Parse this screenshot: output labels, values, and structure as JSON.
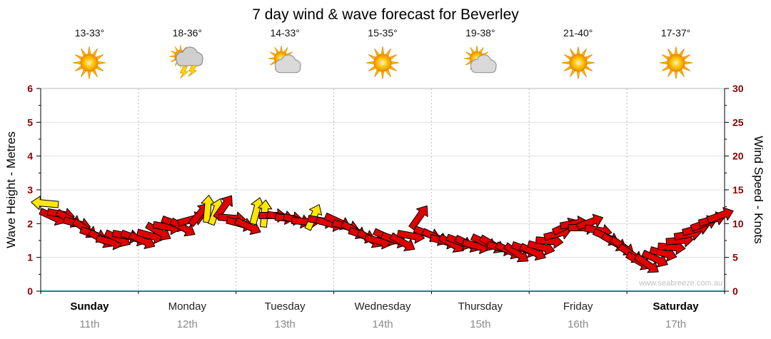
{
  "title": "7 day wind & wave forecast for Beverley",
  "watermark": "www.seabreeze.com.au",
  "axes": {
    "left_label": "Wave Height - Metres",
    "right_label": "Wind Speed - Knots",
    "left_ticks": [
      0,
      1,
      2,
      3,
      4,
      5,
      6
    ],
    "right_ticks": [
      0,
      5,
      10,
      15,
      20,
      25,
      30
    ]
  },
  "days": [
    {
      "name": "Sunday",
      "date": "11th",
      "temp": "13-33°",
      "icon": "sunny",
      "bold": true
    },
    {
      "name": "Monday",
      "date": "12th",
      "temp": "18-36°",
      "icon": "storm",
      "bold": false
    },
    {
      "name": "Tuesday",
      "date": "13th",
      "temp": "14-33°",
      "icon": "partly-cloudy",
      "bold": false
    },
    {
      "name": "Wednesday",
      "date": "14th",
      "temp": "15-35°",
      "icon": "sunny",
      "bold": false
    },
    {
      "name": "Thursday",
      "date": "15th",
      "temp": "19-38°",
      "icon": "partly-cloudy",
      "bold": false
    },
    {
      "name": "Friday",
      "date": "16th",
      "temp": "21-40°",
      "icon": "sunny",
      "bold": false
    },
    {
      "name": "Saturday",
      "date": "17th",
      "temp": "17-37°",
      "icon": "sunny",
      "bold": true
    }
  ],
  "colors": {
    "arrow_red": "#E00000",
    "arrow_yellow": "#FFE800",
    "tick_label": "#8B0000",
    "baseline_teal": "#0F8A8A",
    "grid": "#E0E0E0",
    "day_separator": "#BDBDBD",
    "axis_line": "#000000",
    "top_border": "#BBBBBB"
  },
  "chart_data": {
    "type": "scatter",
    "subtype": "wind-arrow-series",
    "title": "7 day wind & wave forecast for Beverley",
    "ylabel_left": "Wave Height - Metres",
    "ylabel_right": "Wind Speed - Knots",
    "ylim_left_metres": [
      0,
      6
    ],
    "ylim_right_knots": [
      0,
      30
    ],
    "x_categories": [
      "Sunday 11th",
      "Monday 12th",
      "Tuesday 13th",
      "Wednesday 14th",
      "Thursday 15th",
      "Friday 16th",
      "Saturday 17th"
    ],
    "x_range_days": 7,
    "point_interval_hours": 2,
    "point_format": "[wind_knots, arrow_rotation_deg_cw_from_east, color r=red y=yellow]",
    "points": [
      [
        13,
        185,
        "y"
      ],
      [
        11,
        25,
        "r"
      ],
      [
        11.4,
        10,
        "r"
      ],
      [
        10.7,
        30,
        "r"
      ],
      [
        10,
        15,
        "r"
      ],
      [
        9.2,
        35,
        "r"
      ],
      [
        8.4,
        20,
        "r"
      ],
      [
        7.7,
        30,
        "r"
      ],
      [
        7.3,
        15,
        "r"
      ],
      [
        7.8,
        25,
        "r"
      ],
      [
        8.2,
        10,
        "r"
      ],
      [
        7.9,
        20,
        "r"
      ],
      [
        7.5,
        25,
        "r"
      ],
      [
        8.2,
        15,
        "r"
      ],
      [
        8.8,
        30,
        "r"
      ],
      [
        9.5,
        10,
        "r"
      ],
      [
        10,
        20,
        "r"
      ],
      [
        9.4,
        30,
        "r"
      ],
      [
        10.6,
        -15,
        "r"
      ],
      [
        11.4,
        -50,
        "r"
      ],
      [
        12.2,
        -85,
        "y"
      ],
      [
        11.8,
        -70,
        "y"
      ],
      [
        12.5,
        -55,
        "r"
      ],
      [
        10.8,
        5,
        "r"
      ],
      [
        10,
        15,
        "r"
      ],
      [
        9.6,
        25,
        "r"
      ],
      [
        11.9,
        -75,
        "y"
      ],
      [
        11.5,
        -85,
        "y"
      ],
      [
        11.2,
        0,
        "r"
      ],
      [
        11,
        10,
        "r"
      ],
      [
        10.8,
        5,
        "r"
      ],
      [
        10.5,
        15,
        "r"
      ],
      [
        10.3,
        5,
        "r"
      ],
      [
        11,
        -65,
        "y"
      ],
      [
        10.4,
        10,
        "r"
      ],
      [
        10,
        15,
        "r"
      ],
      [
        10.3,
        25,
        "r"
      ],
      [
        9.6,
        15,
        "r"
      ],
      [
        9,
        30,
        "r"
      ],
      [
        8.3,
        20,
        "r"
      ],
      [
        7.7,
        30,
        "r"
      ],
      [
        7.4,
        15,
        "r"
      ],
      [
        8,
        25,
        "r"
      ],
      [
        7.6,
        20,
        "r"
      ],
      [
        7.2,
        30,
        "r"
      ],
      [
        8.2,
        10,
        "r"
      ],
      [
        11,
        -55,
        "r"
      ],
      [
        8.5,
        20,
        "r"
      ],
      [
        8,
        25,
        "r"
      ],
      [
        7.4,
        15,
        "r"
      ],
      [
        7,
        30,
        "r"
      ],
      [
        7.3,
        20,
        "r"
      ],
      [
        7,
        25,
        "r"
      ],
      [
        6.7,
        15,
        "r"
      ],
      [
        7.2,
        25,
        "r"
      ],
      [
        6.9,
        30,
        "r"
      ],
      [
        6.4,
        15,
        "r"
      ],
      [
        6,
        25,
        "r"
      ],
      [
        5.6,
        35,
        "r"
      ],
      [
        6.2,
        20,
        "r"
      ],
      [
        5.8,
        25,
        "r"
      ],
      [
        6.5,
        15,
        "r"
      ],
      [
        7.4,
        5,
        "r"
      ],
      [
        8.5,
        -15,
        "r"
      ],
      [
        9.6,
        -25,
        "r"
      ],
      [
        10,
        -10,
        "r"
      ],
      [
        9.4,
        0,
        "r"
      ],
      [
        10.2,
        -20,
        "r"
      ],
      [
        9,
        10,
        "r"
      ],
      [
        8,
        25,
        "r"
      ],
      [
        7.2,
        30,
        "r"
      ],
      [
        6.6,
        35,
        "r"
      ],
      [
        5.5,
        35,
        "r"
      ],
      [
        4.4,
        30,
        "r"
      ],
      [
        4,
        35,
        "r"
      ],
      [
        4.8,
        25,
        "r"
      ],
      [
        5.6,
        15,
        "r"
      ],
      [
        6.5,
        5,
        "r"
      ],
      [
        7.5,
        -5,
        "r"
      ],
      [
        8.4,
        -10,
        "r"
      ],
      [
        9.2,
        -15,
        "r"
      ],
      [
        10,
        -20,
        "r"
      ],
      [
        10.6,
        -15,
        "r"
      ],
      [
        11.2,
        -20,
        "r"
      ]
    ]
  }
}
